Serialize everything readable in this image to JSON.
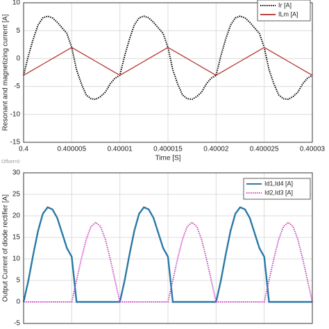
{
  "chart_data": [
    {
      "type": "line",
      "ylabel": "Resonant and magnetizing current [A]",
      "xlabel": "Time [S]",
      "annotation": "Offset=0",
      "x": [
        0.4,
        0.4000005,
        0.400001,
        0.4000015,
        0.400002,
        0.4000025,
        0.400003,
        0.4000035,
        0.400004,
        0.4000045,
        0.400005,
        0.4000055,
        0.400006,
        0.4000065,
        0.400007,
        0.4000075,
        0.400008,
        0.4000085,
        0.400009,
        0.4000095,
        0.40001,
        0.4000105,
        0.400011,
        0.4000115,
        0.400012,
        0.4000125,
        0.400013,
        0.4000135,
        0.400014,
        0.4000145,
        0.400015,
        0.4000155,
        0.400016,
        0.4000165,
        0.400017,
        0.4000175,
        0.400018,
        0.4000185,
        0.400019,
        0.4000195,
        0.40002,
        0.4000205,
        0.400021,
        0.4000215,
        0.400022,
        0.4000225,
        0.400023,
        0.4000235,
        0.400024,
        0.4000245,
        0.400025,
        0.4000255,
        0.400026,
        0.4000265,
        0.400027,
        0.4000275,
        0.400028,
        0.4000285,
        0.400029,
        0.4000295,
        0.40003
      ],
      "xlim": [
        0.4,
        0.40003
      ],
      "xticks": [
        0.4,
        0.400005,
        0.40001,
        0.400015,
        0.40002,
        0.400025,
        0.40003
      ],
      "ylim": [
        -15,
        10
      ],
      "yticks": [
        -15,
        -10,
        -5,
        0,
        5,
        10
      ],
      "grid": true,
      "legend": "upper right",
      "series": [
        {
          "name": "Ir [A]",
          "color": "#000000",
          "style": "dotted",
          "values": [
            -3,
            0.5,
            3.5,
            6,
            7.3,
            7.6,
            7.3,
            6.5,
            5.5,
            4.5,
            2,
            -2,
            -4.5,
            -6.5,
            -7.2,
            -7.3,
            -6.8,
            -6,
            -4.5,
            -3.5,
            -3,
            0.5,
            3.5,
            6,
            7.3,
            7.6,
            7.3,
            6.5,
            5.5,
            4.5,
            2,
            -2,
            -4.5,
            -6.5,
            -7.2,
            -7.3,
            -6.8,
            -6,
            -4.5,
            -3.5,
            -3,
            0.5,
            3.5,
            6,
            7.3,
            7.6,
            7.3,
            6.5,
            5.5,
            4.5,
            2,
            -2,
            -4.5,
            -6.5,
            -7.2,
            -7.3,
            -6.8,
            -6,
            -4.5,
            -3.5,
            -3
          ]
        },
        {
          "name": "ILm [A]",
          "color": "#b8453c",
          "style": "solid",
          "values": [
            -3,
            -2.5,
            -2,
            -1.5,
            -1,
            -0.5,
            0,
            0.5,
            1,
            1.5,
            2,
            1.5,
            1,
            0.5,
            0,
            -0.5,
            -1,
            -1.5,
            -2,
            -2.5,
            -3,
            -2.5,
            -2,
            -1.5,
            -1,
            -0.5,
            0,
            0.5,
            1,
            1.5,
            2,
            1.5,
            1,
            0.5,
            0,
            -0.5,
            -1,
            -1.5,
            -2,
            -2.5,
            -3,
            -2.5,
            -2,
            -1.5,
            -1,
            -0.5,
            0,
            0.5,
            1,
            1.5,
            2,
            1.5,
            1,
            0.5,
            0,
            -0.5,
            -1,
            -1.5,
            -2,
            -2.5,
            -3
          ]
        }
      ]
    },
    {
      "type": "line",
      "ylabel": "Output Current of diode rectifier [A]",
      "x": [
        0.4,
        0.4000005,
        0.400001,
        0.4000015,
        0.400002,
        0.4000025,
        0.400003,
        0.4000035,
        0.400004,
        0.4000045,
        0.400005,
        0.4000055,
        0.400006,
        0.4000065,
        0.400007,
        0.4000075,
        0.400008,
        0.4000085,
        0.400009,
        0.4000095,
        0.40001,
        0.4000105,
        0.400011,
        0.4000115,
        0.400012,
        0.4000125,
        0.400013,
        0.4000135,
        0.400014,
        0.4000145,
        0.400015,
        0.4000155,
        0.400016,
        0.4000165,
        0.400017,
        0.4000175,
        0.400018,
        0.4000185,
        0.400019,
        0.4000195,
        0.40002,
        0.4000205,
        0.400021,
        0.4000215,
        0.400022,
        0.4000225,
        0.400023,
        0.4000235,
        0.400024,
        0.4000245,
        0.400025,
        0.4000255,
        0.400026,
        0.4000265,
        0.400027,
        0.4000275,
        0.400028,
        0.4000285,
        0.400029,
        0.4000295,
        0.40003
      ],
      "xlim": [
        0.4,
        0.40003
      ],
      "xticks": [
        0.4,
        0.400005,
        0.40001,
        0.400015,
        0.40002,
        0.400025,
        0.40003
      ],
      "ylim": [
        -5,
        30
      ],
      "yticks": [
        -5,
        0,
        5,
        10,
        15,
        20,
        25,
        30
      ],
      "grid": true,
      "legend": "upper right",
      "series": [
        {
          "name": "Id1,Id4 [A]",
          "color": "#2a78a6",
          "style": "solid",
          "values": [
            0,
            5,
            11,
            16.5,
            20.5,
            22,
            21.5,
            19.5,
            16,
            12.5,
            10.5,
            0,
            0,
            0,
            0,
            0,
            0,
            0,
            0,
            0,
            0,
            5,
            11,
            16.5,
            20.5,
            22,
            21.5,
            19.5,
            16,
            12.5,
            10.5,
            0,
            0,
            0,
            0,
            0,
            0,
            0,
            0,
            0,
            0,
            5,
            11,
            16.5,
            20.5,
            22,
            21.5,
            19.5,
            16,
            12.5,
            10.5,
            0,
            0,
            0,
            0,
            0,
            0,
            0,
            0,
            0,
            0
          ]
        },
        {
          "name": "Id2,Id3 [A]",
          "color": "#d13fc6",
          "style": "dotted",
          "values": [
            0,
            0,
            0,
            0,
            0,
            0,
            0,
            0,
            0,
            0,
            0,
            5,
            10,
            14.5,
            17.5,
            18.5,
            17.5,
            14.5,
            10,
            5,
            0,
            0,
            0,
            0,
            0,
            0,
            0,
            0,
            0,
            0,
            0,
            5,
            10,
            14.5,
            17.5,
            18.5,
            17.5,
            14.5,
            10,
            5,
            0,
            0,
            0,
            0,
            0,
            0,
            0,
            0,
            0,
            0,
            0,
            5,
            10,
            14.5,
            17.5,
            18.5,
            17.5,
            14.5,
            10,
            5,
            0
          ]
        }
      ]
    }
  ]
}
